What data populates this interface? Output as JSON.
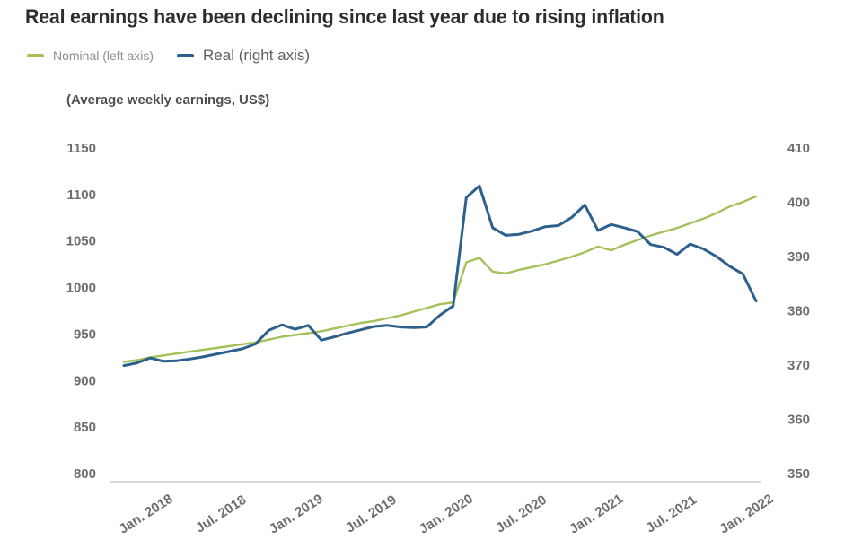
{
  "title": "Real earnings have been declining since last year due to rising inflation",
  "subtitle": "(Average weekly earnings, US$)",
  "legend": [
    {
      "label": "Nominal (left axis)",
      "color": "#a3c158"
    },
    {
      "label": "Real (right axis)",
      "color": "#2d608c"
    }
  ],
  "colors": {
    "nominal_line": "#a3c158",
    "real_line": "#2d608c",
    "axis_line": "#cbcbcb",
    "tick_text": "#6e6e6e",
    "title_text": "#2d2d2d"
  },
  "chart_data": {
    "type": "line",
    "title": "Real earnings have been declining since last year due to rising inflation",
    "subtitle": "(Average weekly earnings, US$)",
    "frequency": "monthly",
    "grid": "off",
    "legend_position": "top-left",
    "x": [
      "2018-01",
      "2018-02",
      "2018-03",
      "2018-04",
      "2018-05",
      "2018-06",
      "2018-07",
      "2018-08",
      "2018-09",
      "2018-10",
      "2018-11",
      "2018-12",
      "2019-01",
      "2019-02",
      "2019-03",
      "2019-04",
      "2019-05",
      "2019-06",
      "2019-07",
      "2019-08",
      "2019-09",
      "2019-10",
      "2019-11",
      "2019-12",
      "2020-01",
      "2020-02",
      "2020-03",
      "2020-04",
      "2020-05",
      "2020-06",
      "2020-07",
      "2020-08",
      "2020-09",
      "2020-10",
      "2020-11",
      "2020-12",
      "2021-01",
      "2021-02",
      "2021-03",
      "2021-04",
      "2021-05",
      "2021-06",
      "2021-07",
      "2021-08",
      "2021-09",
      "2021-10",
      "2021-11",
      "2021-12",
      "2022-01"
    ],
    "x_tick_labels": [
      "Jan. 2018",
      "Jul. 2018",
      "Jan. 2019",
      "Jul. 2019",
      "Jan. 2020",
      "Jul. 2020",
      "Jan. 2021",
      "Jul. 2021",
      "Jan. 2022"
    ],
    "left_axis": {
      "ticks": [
        1150,
        1100,
        1050,
        1000,
        950,
        900,
        850,
        800
      ],
      "min": 800,
      "max": 1150
    },
    "right_axis": {
      "ticks": [
        410,
        400,
        390,
        380,
        370,
        360,
        350
      ],
      "min": 350,
      "max": 410
    },
    "series": [
      {
        "name": "Nominal (left axis)",
        "axis": "left",
        "color": "#a3c158",
        "values": [
          920,
          922,
          925,
          927,
          929,
          931,
          933,
          935,
          937,
          939,
          941,
          944,
          947,
          949,
          951,
          953,
          956,
          959,
          962,
          964,
          967,
          970,
          974,
          978,
          982,
          984,
          1027,
          1032,
          1017,
          1015,
          1019,
          1022,
          1025,
          1029,
          1033,
          1038,
          1044,
          1040,
          1046,
          1051,
          1056,
          1060,
          1064,
          1069,
          1074,
          1080,
          1087,
          1092,
          1098
        ]
      },
      {
        "name": "Real (right axis)",
        "axis": "right",
        "color": "#2d608c",
        "values": [
          369.9,
          370.4,
          371.3,
          370.7,
          370.8,
          371.1,
          371.5,
          372.0,
          372.5,
          373.0,
          373.9,
          376.4,
          377.4,
          376.6,
          377.3,
          374.6,
          375.2,
          375.9,
          376.5,
          377.1,
          377.3,
          377.0,
          376.9,
          377.0,
          379.2,
          380.9,
          400.9,
          403.0,
          395.3,
          393.9,
          394.1,
          394.7,
          395.5,
          395.7,
          397.2,
          399.5,
          394.8,
          395.9,
          395.3,
          394.6,
          392.2,
          391.7,
          390.4,
          392.3,
          391.4,
          390.0,
          388.2,
          386.8,
          381.8
        ]
      }
    ]
  }
}
